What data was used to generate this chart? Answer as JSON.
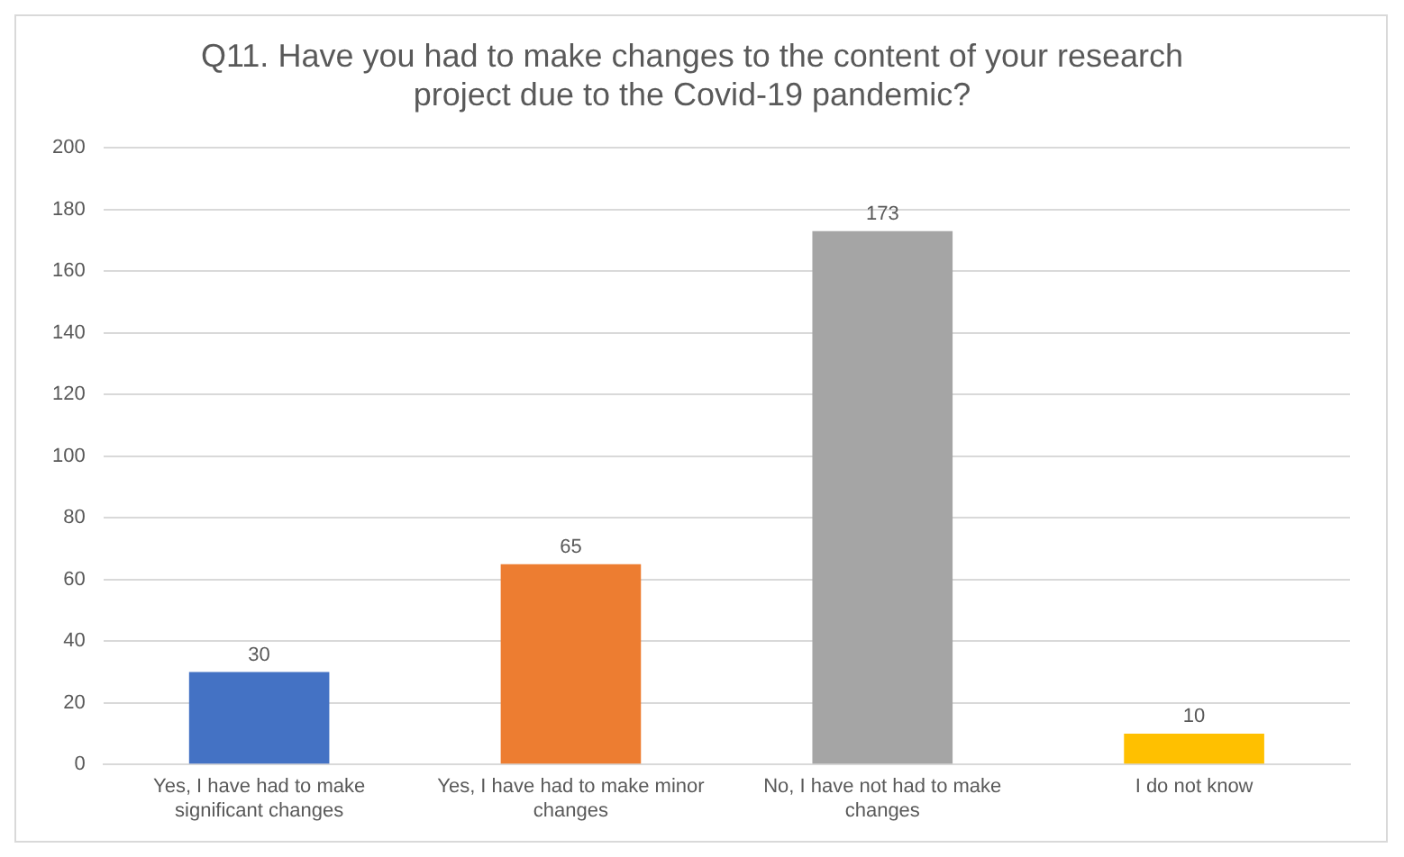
{
  "chart_data": {
    "type": "bar",
    "title": "Q11. Have you had to make changes to the content of your research project due to the Covid-19 pandemic?",
    "categories": [
      "Yes, I have had to make significant changes",
      "Yes, I have had to make minor changes",
      "No, I have not had to make changes",
      "I do not know"
    ],
    "values": [
      30,
      65,
      173,
      10
    ],
    "colors": [
      "#4472c4",
      "#ed7d31",
      "#a5a5a5",
      "#ffc000"
    ],
    "ylim": [
      0,
      200
    ],
    "yticks": [
      0,
      20,
      40,
      60,
      80,
      100,
      120,
      140,
      160,
      180,
      200
    ],
    "grid": "y",
    "data_labels": true
  }
}
